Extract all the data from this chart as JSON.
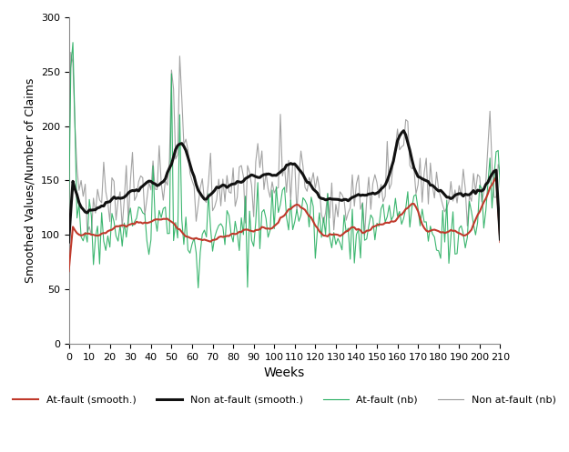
{
  "title": "",
  "xlabel": "Weeks",
  "ylabel": "Smoothed Values/Number of Claims",
  "xlim": [
    0,
    210
  ],
  "ylim": [
    0,
    300
  ],
  "xticks": [
    0,
    10,
    20,
    30,
    40,
    50,
    60,
    70,
    80,
    90,
    100,
    110,
    120,
    130,
    140,
    150,
    160,
    170,
    180,
    190,
    200,
    210
  ],
  "yticks": [
    0,
    50,
    100,
    150,
    200,
    250,
    300
  ],
  "color_at_fault_smooth": "#c0392b",
  "color_non_at_fault_smooth": "#111111",
  "color_at_fault_nb": "#27ae60",
  "color_non_at_fault_nb": "#999999",
  "lw_naf_smooth": 2.2,
  "lw_af_smooth": 1.5,
  "lw_nb": 0.8,
  "legend_labels": [
    "At-fault (smooth.)",
    "Non at-fault (smooth.)",
    "At-fault (nb)",
    "Non at-fault (nb)"
  ]
}
